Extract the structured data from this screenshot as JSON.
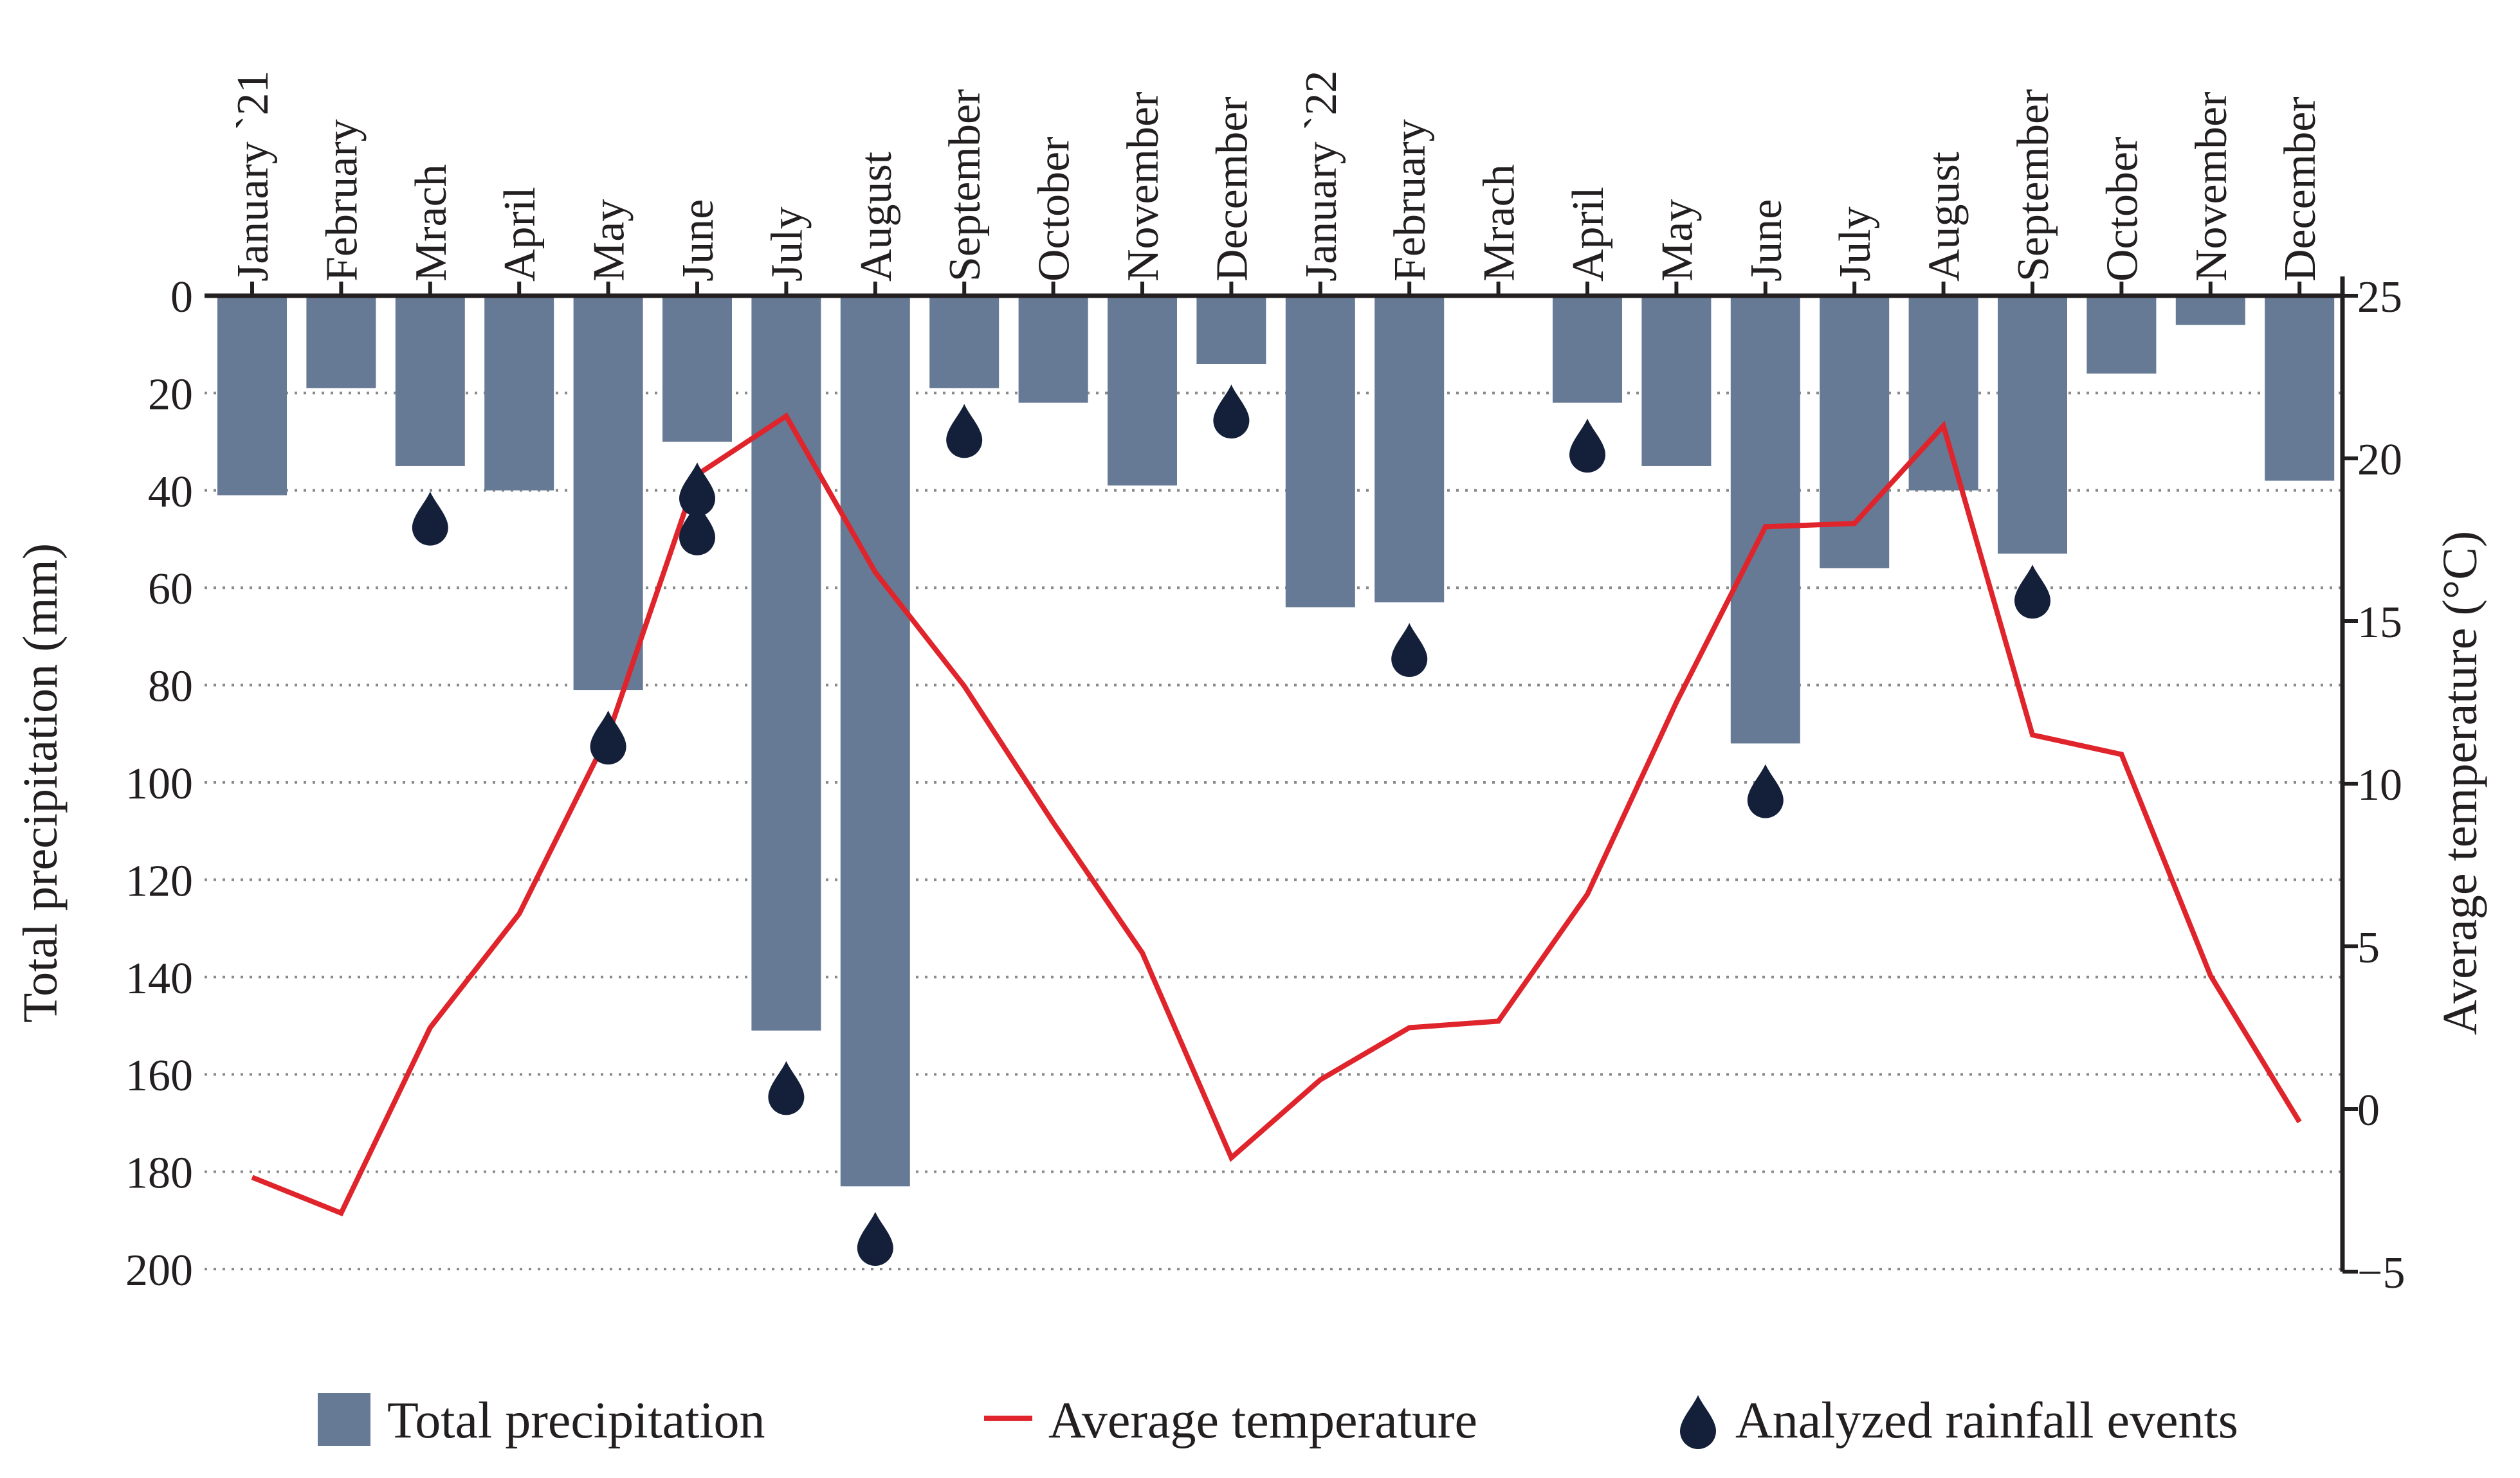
{
  "chart_data": {
    "type": "bar+line",
    "categories": [
      "January `21",
      "February",
      "Mrach",
      "April",
      "May",
      "June",
      "July",
      "August",
      "September",
      "October",
      "November",
      "December",
      "January `22",
      "February",
      "Mrach",
      "April",
      "May",
      "June",
      "July",
      "August",
      "September",
      "October",
      "November",
      "December"
    ],
    "series": [
      {
        "name": "Total precipitation",
        "axis": "left",
        "type": "bar",
        "values": [
          41,
          19,
          35,
          40,
          81,
          30,
          151,
          183,
          19,
          22,
          39,
          14,
          64,
          63,
          0,
          22,
          35,
          92,
          56,
          40,
          53,
          16,
          6,
          38
        ]
      },
      {
        "name": "Average temperature",
        "axis": "right",
        "type": "line",
        "values": [
          -2.1,
          -3.2,
          2.5,
          6.0,
          11.5,
          19.5,
          21.3,
          16.5,
          13.0,
          8.8,
          4.8,
          -1.5,
          0.9,
          2.5,
          2.7,
          6.6,
          12.5,
          17.9,
          18.0,
          21.0,
          11.5,
          10.9,
          4.1,
          -0.4
        ]
      },
      {
        "name": "Analyzed rainfall events",
        "axis": "left",
        "type": "marker",
        "points": [
          [
            2,
            45
          ],
          [
            4,
            90
          ],
          [
            5,
            39
          ],
          [
            5,
            47
          ],
          [
            6,
            162
          ],
          [
            7,
            193
          ],
          [
            8,
            27
          ],
          [
            11,
            23
          ],
          [
            13,
            72
          ],
          [
            15,
            30
          ],
          [
            17,
            101
          ],
          [
            20,
            60
          ]
        ]
      }
    ],
    "y_left": {
      "label": "Total precipitation (mm)",
      "range": [
        0,
        200
      ],
      "ticks": [
        0,
        20,
        40,
        60,
        80,
        100,
        120,
        140,
        160,
        180,
        200
      ],
      "inverted": true
    },
    "y_right": {
      "label": "Average temperature (°C)",
      "range": [
        -5,
        25
      ],
      "ticks": [
        25,
        20,
        15,
        10,
        5,
        0,
        -5
      ]
    },
    "legend": {
      "placement": "bottom",
      "items": [
        "Total precipitation",
        "Average temperature",
        "Analyzed rainfall events"
      ]
    },
    "colors": {
      "bar": "#667995",
      "line": "#e0242b",
      "drop": "#14203a",
      "axis": "#231f20",
      "grid": "#8a8a8a"
    },
    "grid": true
  }
}
